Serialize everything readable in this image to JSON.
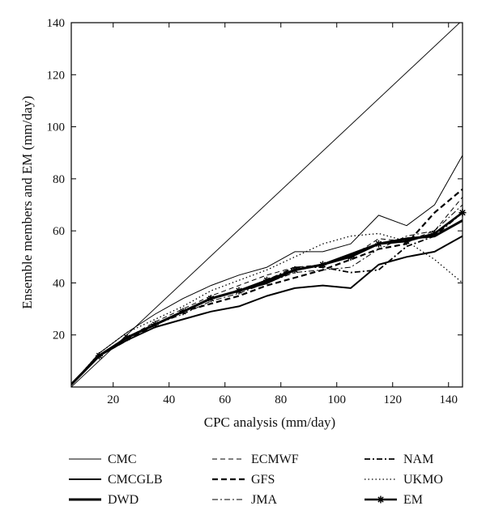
{
  "chart_data": {
    "type": "line",
    "title": "",
    "xlabel": "CPC analysis (mm/day)",
    "ylabel": "Ensemble members and EM (mm/day)",
    "xlim": [
      5,
      145
    ],
    "ylim": [
      0,
      140
    ],
    "xticks": [
      20,
      40,
      60,
      80,
      100,
      120,
      140
    ],
    "yticks": [
      20,
      40,
      60,
      80,
      100,
      120,
      140
    ],
    "grid": false,
    "legend_position": "bottom",
    "x": [
      5,
      15,
      25,
      35,
      45,
      55,
      65,
      75,
      85,
      95,
      105,
      115,
      125,
      135,
      145
    ],
    "reference_line": {
      "x": [
        5,
        145
      ],
      "y": [
        0,
        141
      ]
    },
    "series": [
      {
        "name": "CMC",
        "style": "thin-solid",
        "values": [
          1,
          13,
          21,
          28,
          34,
          39,
          43,
          46,
          52,
          52,
          55,
          66,
          62,
          70,
          89
        ]
      },
      {
        "name": "CMCGLB",
        "style": "medium-solid",
        "values": [
          1,
          12,
          18,
          23,
          26,
          29,
          31,
          35,
          38,
          39,
          38,
          47,
          50,
          52,
          58
        ]
      },
      {
        "name": "DWD",
        "style": "thick-solid",
        "values": [
          1,
          12,
          19,
          24,
          29,
          34,
          37,
          40,
          45,
          47,
          51,
          55,
          57,
          58,
          64
        ]
      },
      {
        "name": "ECMWF",
        "style": "thin-dashed",
        "values": [
          1,
          12,
          19,
          25,
          30,
          35,
          39,
          43,
          46,
          47,
          50,
          57,
          56,
          60,
          73
        ]
      },
      {
        "name": "GFS",
        "style": "thick-dashed",
        "values": [
          1,
          12,
          18,
          24,
          29,
          32,
          35,
          39,
          42,
          45,
          49,
          53,
          55,
          67,
          76
        ]
      },
      {
        "name": "JMA",
        "style": "thin-dashdot",
        "values": [
          1,
          12,
          19,
          24,
          28,
          33,
          36,
          40,
          44,
          45,
          46,
          53,
          58,
          60,
          70
        ]
      },
      {
        "name": "NAM",
        "style": "medium-dashdot",
        "values": [
          1,
          12,
          19,
          24,
          29,
          34,
          37,
          41,
          46,
          46,
          44,
          45,
          54,
          58,
          67
        ]
      },
      {
        "name": "UKMO",
        "style": "dotted",
        "values": [
          1,
          13,
          21,
          26,
          31,
          37,
          41,
          45,
          50,
          55,
          58,
          59,
          56,
          49,
          40
        ]
      },
      {
        "name": "EM",
        "style": "thick-solid-star",
        "values": [
          1,
          12,
          19,
          24,
          29,
          34,
          37,
          41,
          45,
          47,
          50,
          55,
          56,
          59,
          67
        ]
      }
    ]
  }
}
